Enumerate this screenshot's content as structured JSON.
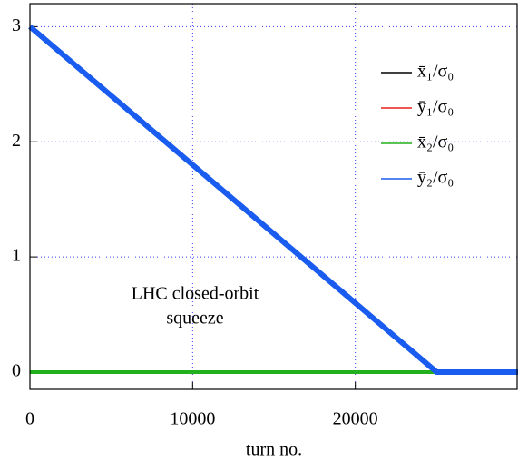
{
  "chart_data": {
    "type": "line",
    "x_label": "turn no.",
    "annotation": [
      "LHC closed-orbit",
      "squeeze"
    ],
    "x": [
      0,
      25000,
      30000
    ],
    "series": [
      {
        "name": "x̄₁/σ₀",
        "color": "#000000",
        "values": [
          0,
          0,
          0
        ]
      },
      {
        "name": "ȳ₁/σ₀",
        "color": "#e8201c",
        "values": [
          0,
          0,
          0
        ]
      },
      {
        "name": "x̄₂/σ₀",
        "color": "#22b01c",
        "values": [
          0,
          0,
          0
        ]
      },
      {
        "name": "ȳ₂/σ₀",
        "color": "#1a5cf0",
        "values": [
          3,
          0,
          0
        ]
      }
    ],
    "xlim": [
      0,
      30000
    ],
    "xticks": [
      0,
      10000,
      20000
    ],
    "ylim": [
      -0.15,
      3.2
    ],
    "yticks": [
      0,
      1,
      2,
      3
    ],
    "grid": true,
    "legend": "upper right"
  }
}
